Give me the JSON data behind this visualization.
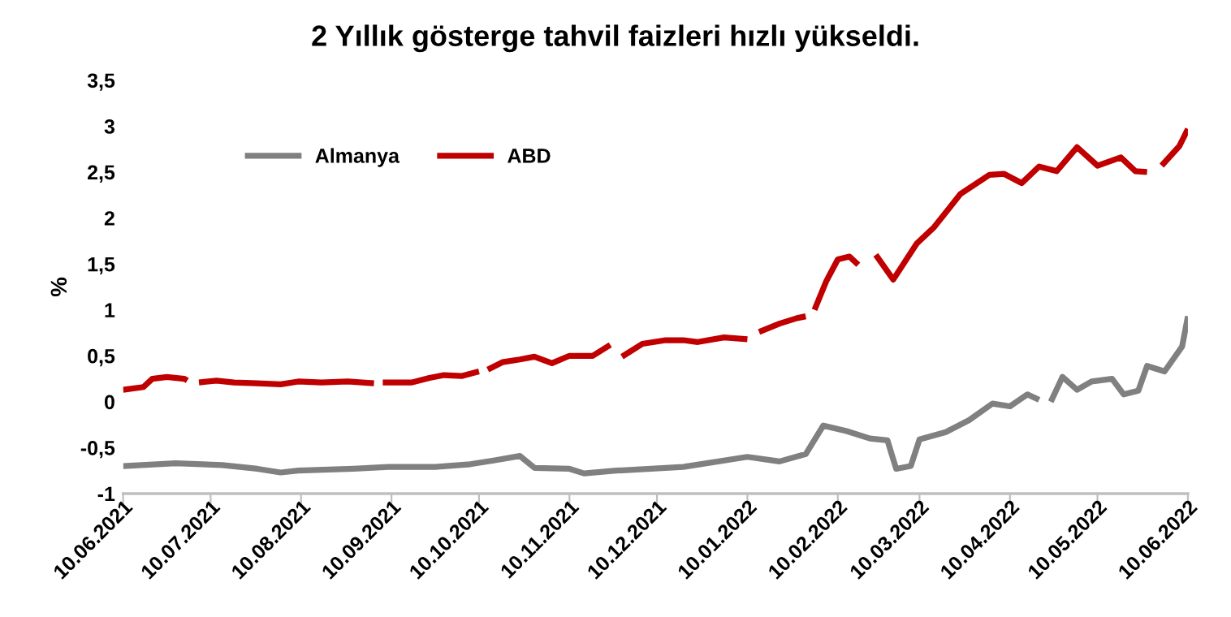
{
  "chart_data": {
    "type": "line",
    "title": "2 Yıllık gösterge tahvil faizleri hızlı yükseldi.",
    "ylabel": "%",
    "xlim": [
      "2021-06-10",
      "2022-06-10"
    ],
    "xticks": [
      {
        "value": "2021-06-10",
        "label": "10.06.2021"
      },
      {
        "value": "2021-07-10",
        "label": "10.07.2021"
      },
      {
        "value": "2021-08-10",
        "label": "10.08.2021"
      },
      {
        "value": "2021-09-10",
        "label": "10.09.2021"
      },
      {
        "value": "2021-10-10",
        "label": "10.10.2021"
      },
      {
        "value": "2021-11-10",
        "label": "10.11.2021"
      },
      {
        "value": "2021-12-10",
        "label": "10.12.2021"
      },
      {
        "value": "2022-01-10",
        "label": "10.01.2022"
      },
      {
        "value": "2022-02-10",
        "label": "10.02.2022"
      },
      {
        "value": "2022-03-10",
        "label": "10.03.2022"
      },
      {
        "value": "2022-04-10",
        "label": "10.04.2022"
      },
      {
        "value": "2022-05-10",
        "label": "10.05.2022"
      },
      {
        "value": "2022-06-10",
        "label": "10.06.2022"
      }
    ],
    "ylim": [
      -1,
      3.5
    ],
    "yticks": [
      -1,
      {
        "value": -0.5,
        "label": "-0,5"
      },
      0,
      {
        "value": 0.5,
        "label": "0,5"
      },
      1,
      {
        "value": 1.5,
        "label": "1,5"
      },
      2,
      {
        "value": 2.5,
        "label": "2,5"
      },
      3,
      {
        "value": 3.5,
        "label": "3,5"
      }
    ],
    "grid": false,
    "legend": "top left",
    "marker": "none",
    "line_style": "solid",
    "series": [
      {
        "name": "Almanya",
        "color": "#808080",
        "x": [
          "2021-06-10",
          "2021-06-28",
          "2021-07-14",
          "2021-07-26",
          "2021-08-03",
          "2021-08-09",
          "2021-08-28",
          "2021-09-09",
          "2021-09-25",
          "2021-10-07",
          "2021-10-15",
          "2021-10-24",
          "2021-10-29",
          "2021-11-10",
          "2021-11-15",
          "2021-11-26",
          "2021-12-19",
          "2022-01-10",
          "2022-01-21",
          "2022-01-30",
          "2022-02-05",
          "2022-02-13",
          "2022-02-21",
          "2022-02-27",
          "2022-03-02",
          "2022-03-07",
          "2022-03-10",
          "2022-03-19",
          "2022-03-27",
          "2022-04-04",
          "2022-04-10",
          "2022-04-16",
          "2022-04-20",
          "2022-04-23",
          "2022-04-24",
          "2022-04-28",
          "2022-05-03",
          "2022-05-08",
          "2022-05-15",
          "2022-05-19",
          "2022-05-24",
          "2022-05-27",
          "2022-06-02",
          "2022-06-08",
          "2022-06-10"
        ],
        "values": [
          -0.7,
          -0.67,
          -0.69,
          -0.73,
          -0.77,
          -0.75,
          -0.73,
          -0.71,
          -0.71,
          -0.68,
          -0.64,
          -0.59,
          -0.72,
          -0.73,
          -0.78,
          -0.75,
          -0.71,
          -0.6,
          -0.65,
          -0.57,
          -0.26,
          -0.32,
          -0.4,
          -0.42,
          -0.73,
          -0.7,
          -0.41,
          -0.33,
          -0.2,
          -0.02,
          -0.05,
          0.08,
          0.02,
          null,
          0.0,
          0.27,
          0.13,
          0.22,
          0.25,
          0.08,
          0.12,
          0.39,
          0.33,
          0.6,
          0.93
        ]
      },
      {
        "name": "ABD",
        "color": "#c00000",
        "x": [
          "2021-06-10",
          "2021-06-17",
          "2021-06-20",
          "2021-06-25",
          "2021-07-01",
          "2021-07-02",
          "2021-07-04",
          "2021-07-06",
          "2021-07-12",
          "2021-07-18",
          "2021-07-26",
          "2021-08-03",
          "2021-08-09",
          "2021-08-17",
          "2021-08-26",
          "2021-08-31",
          "2021-09-04",
          "2021-09-06",
          "2021-09-07",
          "2021-09-17",
          "2021-09-23",
          "2021-09-28",
          "2021-10-04",
          "2021-10-10",
          "2021-10-11",
          "2021-10-13",
          "2021-10-18",
          "2021-10-24",
          "2021-10-29",
          "2021-11-04",
          "2021-11-10",
          "2021-11-18",
          "2021-11-24",
          "2021-11-26",
          "2021-11-28",
          "2021-12-05",
          "2021-12-13",
          "2021-12-19",
          "2021-12-24",
          "2022-01-02",
          "2022-01-10",
          "2022-01-12",
          "2022-01-14",
          "2022-01-21",
          "2022-01-27",
          "2022-01-30",
          "2022-02-01",
          "2022-02-02",
          "2022-02-06",
          "2022-02-10",
          "2022-02-14",
          "2022-02-17",
          "2022-02-19",
          "2022-02-23",
          "2022-03-01",
          "2022-03-09",
          "2022-03-15",
          "2022-03-24",
          "2022-04-03",
          "2022-04-08",
          "2022-04-14",
          "2022-04-20",
          "2022-04-26",
          "2022-05-03",
          "2022-05-10",
          "2022-05-18",
          "2022-05-23",
          "2022-05-27",
          "2022-05-30",
          "2022-06-01",
          "2022-06-07",
          "2022-06-10"
        ],
        "values": [
          0.13,
          0.16,
          0.25,
          0.27,
          0.25,
          0.23,
          null,
          0.21,
          0.23,
          0.21,
          0.2,
          0.19,
          0.22,
          0.21,
          0.22,
          0.21,
          0.2,
          null,
          0.21,
          0.21,
          0.26,
          0.29,
          0.28,
          0.33,
          null,
          0.35,
          0.43,
          0.46,
          0.49,
          0.42,
          0.5,
          0.5,
          0.62,
          null,
          0.49,
          0.63,
          0.67,
          0.67,
          0.65,
          0.7,
          0.68,
          null,
          0.76,
          0.85,
          0.91,
          0.93,
          null,
          1.0,
          1.31,
          1.55,
          1.58,
          1.49,
          null,
          1.6,
          1.33,
          1.72,
          1.9,
          2.26,
          2.47,
          2.48,
          2.38,
          2.56,
          2.51,
          2.77,
          2.57,
          2.66,
          2.51,
          2.5,
          null,
          2.57,
          2.78,
          2.97
        ]
      }
    ]
  }
}
